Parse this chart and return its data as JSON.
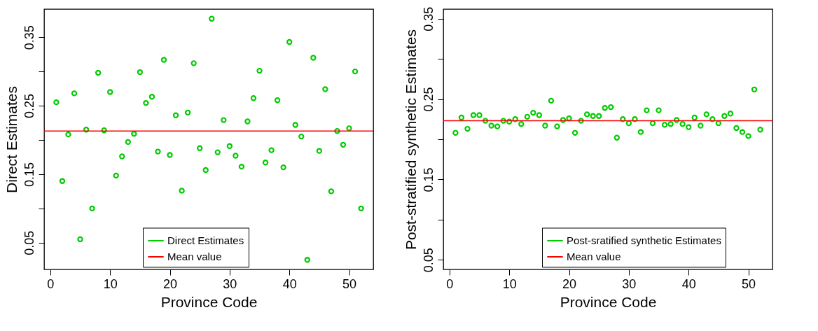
{
  "chart_data": [
    {
      "type": "scatter",
      "xlabel": "Province Code",
      "ylabel": "Direct Estimates",
      "x": [
        1,
        2,
        3,
        4,
        5,
        6,
        7,
        8,
        9,
        10,
        11,
        12,
        13,
        14,
        15,
        16,
        17,
        18,
        19,
        20,
        21,
        22,
        23,
        24,
        25,
        26,
        27,
        28,
        29,
        30,
        31,
        32,
        33,
        34,
        35,
        36,
        37,
        38,
        39,
        40,
        41,
        42,
        43,
        44,
        45,
        46,
        47,
        48,
        49,
        50,
        51,
        52
      ],
      "series": [
        {
          "name": "Direct Estimates",
          "color": "#00cc00",
          "values": [
            0.255,
            0.14,
            0.208,
            0.268,
            0.055,
            0.215,
            0.1,
            0.298,
            0.214,
            0.27,
            0.148,
            0.176,
            0.197,
            0.209,
            0.299,
            0.254,
            0.263,
            0.183,
            0.317,
            0.178,
            0.236,
            0.126,
            0.24,
            0.312,
            0.188,
            0.156,
            0.377,
            0.182,
            0.229,
            0.191,
            0.177,
            0.161,
            0.227,
            0.261,
            0.301,
            0.167,
            0.185,
            0.258,
            0.16,
            0.343,
            0.222,
            0.205,
            0.025,
            0.32,
            0.184,
            0.274,
            0.125,
            0.213,
            0.193,
            0.217,
            0.3,
            0.1
          ]
        }
      ],
      "ref_lines": [
        {
          "axis": "y",
          "value": 0.213,
          "label": "Mean value",
          "color": "#ff0000"
        }
      ],
      "marker": "circle",
      "legend": "bottom",
      "grid": false,
      "xlim": [
        -1.04,
        54.04
      ],
      "xticks": [
        0,
        10,
        20,
        30,
        40,
        50
      ],
      "ylim": [
        0.011,
        0.391
      ],
      "yticks": [
        0.05,
        {
          "value": 0.1,
          "label": null
        },
        0.15,
        {
          "value": 0.2,
          "label": null
        },
        0.25,
        {
          "value": 0.3,
          "label": null
        },
        0.35
      ]
    },
    {
      "type": "scatter",
      "xlabel": "Province Code",
      "ylabel": "Post-stratified synthetic Estimates",
      "x": [
        1,
        2,
        3,
        4,
        5,
        6,
        7,
        8,
        9,
        10,
        11,
        12,
        13,
        14,
        15,
        16,
        17,
        18,
        19,
        20,
        21,
        22,
        23,
        24,
        25,
        26,
        27,
        28,
        29,
        30,
        31,
        32,
        33,
        34,
        35,
        36,
        37,
        38,
        39,
        40,
        41,
        42,
        43,
        44,
        45,
        46,
        47,
        48,
        49,
        50,
        51,
        52
      ],
      "series": [
        {
          "name": "Post-sratified synthetic Estimates",
          "color": "#00cc00",
          "values": [
            0.208,
            0.227,
            0.213,
            0.23,
            0.23,
            0.223,
            0.217,
            0.216,
            0.223,
            0.222,
            0.225,
            0.219,
            0.228,
            0.233,
            0.23,
            0.217,
            0.248,
            0.216,
            0.224,
            0.226,
            0.208,
            0.223,
            0.231,
            0.229,
            0.229,
            0.239,
            0.24,
            0.202,
            0.225,
            0.22,
            0.225,
            0.209,
            0.236,
            0.22,
            0.236,
            0.218,
            0.219,
            0.224,
            0.219,
            0.215,
            0.227,
            0.217,
            0.231,
            0.225,
            0.22,
            0.229,
            0.232,
            0.214,
            0.209,
            0.204,
            0.262,
            0.212
          ]
        }
      ],
      "ref_lines": [
        {
          "axis": "y",
          "value": 0.223,
          "label": "Mean value",
          "color": "#ff0000"
        }
      ],
      "marker": "circle",
      "legend": "bottom",
      "grid": false,
      "xlim": [
        -1.04,
        54.04
      ],
      "xticks": [
        0,
        10,
        20,
        30,
        40,
        50
      ],
      "ylim": [
        0.038,
        0.362
      ],
      "yticks": [
        0.05,
        {
          "value": 0.1,
          "label": null
        },
        0.15,
        {
          "value": 0.2,
          "label": null
        },
        0.25,
        {
          "value": 0.3,
          "label": null
        },
        0.35
      ]
    }
  ]
}
